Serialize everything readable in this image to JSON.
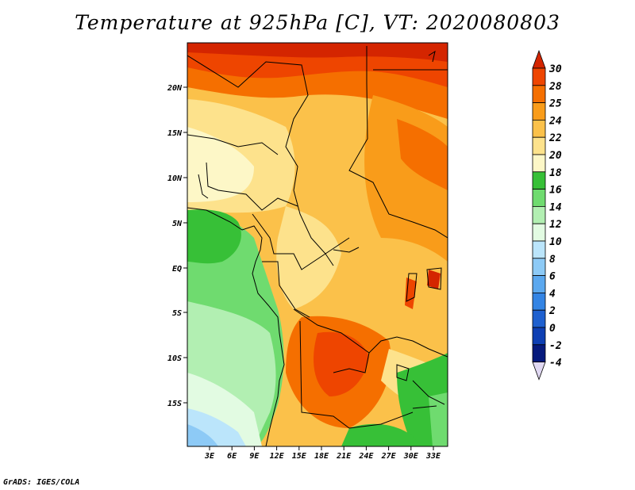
{
  "title": "Temperature at 925hPa [C], VT: 2020080803",
  "credit": "GrADS: IGES/COLA",
  "lat_labels": [
    "20N",
    "15N",
    "10N",
    "5N",
    "EQ",
    "5S",
    "10S",
    "15S"
  ],
  "lon_labels": [
    "3E",
    "6E",
    "9E",
    "12E",
    "15E",
    "18E",
    "21E",
    "24E",
    "27E",
    "30E",
    "33E"
  ],
  "colorbar": {
    "levels": [
      "30",
      "28",
      "25",
      "24",
      "22",
      "20",
      "18",
      "16",
      "14",
      "12",
      "10",
      "8",
      "6",
      "4",
      "2",
      "0",
      "-2",
      "-4"
    ],
    "colors": [
      "#d42500",
      "#ee4500",
      "#f56f00",
      "#f99c1a",
      "#fbc14a",
      "#fde28c",
      "#fdf7c7",
      "#37c037",
      "#6fdb6f",
      "#b2efb2",
      "#e2fbe2",
      "#bbe5fb",
      "#8dcaf6",
      "#5ba8ef",
      "#3384e4",
      "#1e60cf",
      "#0e3fb3",
      "#061a7d",
      "#1b0b55"
    ],
    "top_color": "#d42500",
    "bottom_color": "#e0d8f2"
  },
  "map_colors": {
    "hot": "#d42500",
    "hot2": "#ee4500",
    "orange": "#f56f00",
    "orange2": "#f99c1a",
    "tan": "#fbc14a",
    "yellow": "#fde28c",
    "pale": "#fdf7c7",
    "green": "#37c037",
    "lgreen": "#6fdb6f",
    "llgreen": "#b2efb2",
    "mint": "#e2fbe2",
    "lblue": "#bbe5fb",
    "blue": "#8dcaf6"
  }
}
